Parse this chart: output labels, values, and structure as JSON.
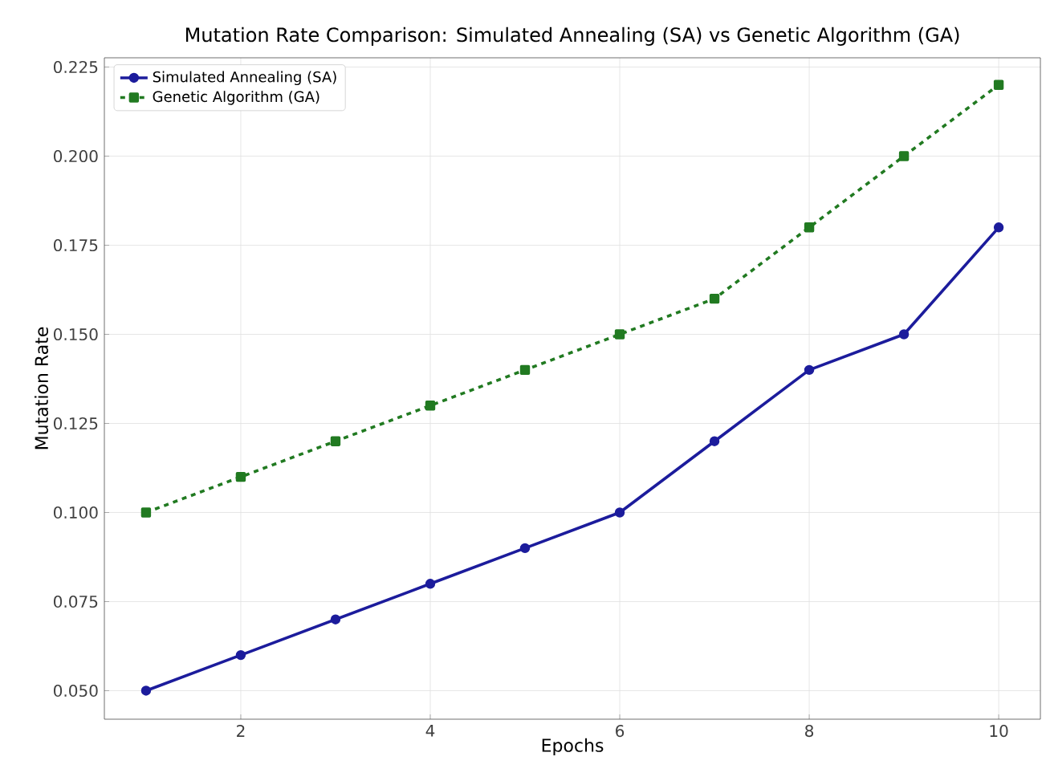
{
  "chart_data": {
    "type": "line",
    "title": "Mutation Rate Comparison: Simulated Annealing (SA) vs Genetic Algorithm (GA)",
    "xlabel": "Epochs",
    "ylabel": "Mutation Rate",
    "x": [
      1,
      2,
      3,
      4,
      5,
      6,
      7,
      8,
      9,
      10
    ],
    "series": [
      {
        "name": "Simulated Annealing (SA)",
        "color": "#1c1c9c",
        "marker": "circle",
        "line_style": "solid",
        "values": [
          0.05,
          0.06,
          0.07,
          0.08,
          0.09,
          0.1,
          0.12,
          0.14,
          0.15,
          0.18
        ]
      },
      {
        "name": "Genetic Algorithm (GA)",
        "color": "#217a21",
        "marker": "square",
        "line_style": "dashed",
        "values": [
          0.1,
          0.11,
          0.12,
          0.13,
          0.14,
          0.15,
          0.16,
          0.18,
          0.2,
          0.22
        ]
      }
    ],
    "xlim": [
      0.56,
      10.44
    ],
    "ylim": [
      0.042,
      0.2276
    ],
    "xticks": [
      2,
      4,
      6,
      8,
      10
    ],
    "yticks": [
      {
        "value": 0.05,
        "label": "0.050"
      },
      {
        "value": 0.075,
        "label": "0.075"
      },
      {
        "value": 0.1,
        "label": "0.100"
      },
      {
        "value": 0.125,
        "label": "0.125"
      },
      {
        "value": 0.15,
        "label": "0.150"
      },
      {
        "value": 0.175,
        "label": "0.175"
      },
      {
        "value": 0.2,
        "label": "0.200"
      },
      {
        "value": 0.225,
        "label": "0.225"
      }
    ],
    "grid": true,
    "legend": "top left"
  }
}
